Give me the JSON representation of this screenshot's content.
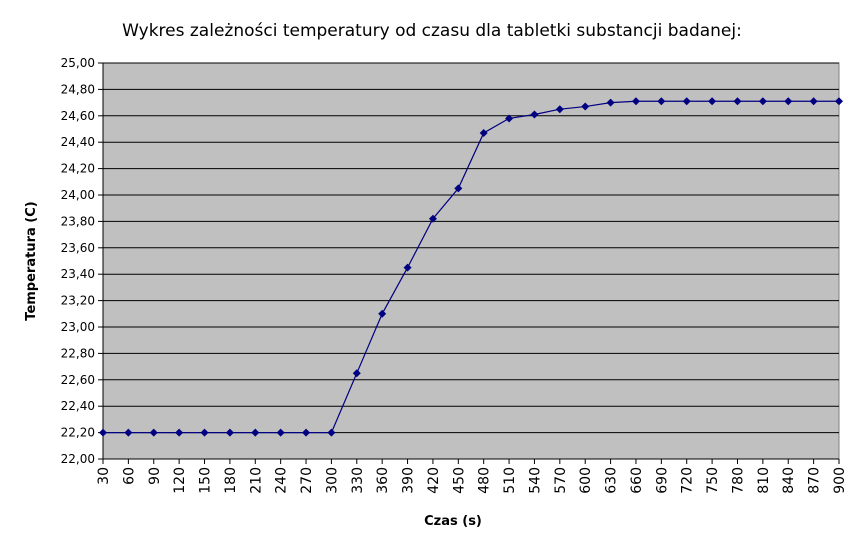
{
  "chart_data": {
    "type": "line",
    "title": "Wykres zależności temperatury od czasu dla tabletki substancji badanej:",
    "xlabel": "Czas (s)",
    "ylabel": "Temperatura (C)",
    "x": [
      30,
      60,
      90,
      120,
      150,
      180,
      210,
      240,
      270,
      300,
      330,
      360,
      390,
      420,
      450,
      480,
      510,
      540,
      570,
      600,
      630,
      660,
      690,
      720,
      750,
      780,
      810,
      840,
      870,
      900
    ],
    "x_tick_labels": [
      "30",
      "60",
      "90",
      "120",
      "150",
      "180",
      "210",
      "240",
      "270",
      "300",
      "330",
      "360",
      "390",
      "420",
      "450",
      "480",
      "510",
      "540",
      "570",
      "600",
      "630",
      "660",
      "690",
      "720",
      "750",
      "780",
      "810",
      "840",
      "870",
      "900"
    ],
    "y_tick_values": [
      22.0,
      22.2,
      22.4,
      22.6,
      22.8,
      23.0,
      23.2,
      23.4,
      23.6,
      23.8,
      24.0,
      24.2,
      24.4,
      24.6,
      24.8,
      25.0
    ],
    "y_tick_labels": [
      "22,00",
      "22,20",
      "22,40",
      "22,60",
      "22,80",
      "23,00",
      "23,20",
      "23,40",
      "23,60",
      "23,80",
      "24,00",
      "24,20",
      "24,40",
      "24,60",
      "24,80",
      "25,00"
    ],
    "ylim": [
      22.0,
      25.0
    ],
    "grid": true,
    "legend": "none",
    "series": [
      {
        "values": [
          22.2,
          22.2,
          22.2,
          22.2,
          22.2,
          22.2,
          22.2,
          22.2,
          22.2,
          22.2,
          22.65,
          23.1,
          23.45,
          23.82,
          24.05,
          24.47,
          24.58,
          24.61,
          24.65,
          24.67,
          24.7,
          24.71,
          24.71,
          24.71,
          24.71,
          24.71,
          24.71,
          24.71,
          24.71,
          24.71
        ],
        "color": "#000080",
        "marker": "diamond"
      }
    ],
    "plot_background": "#c0c0c0",
    "grid_color": "#000000"
  }
}
